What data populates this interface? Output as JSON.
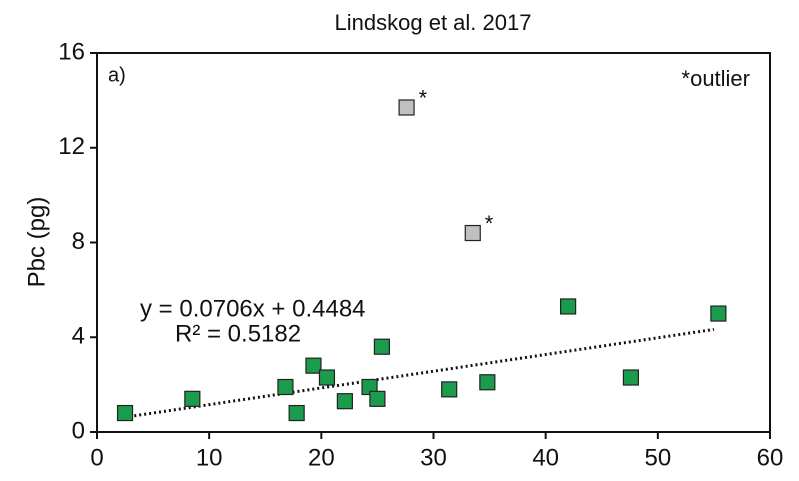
{
  "chart_data": {
    "type": "scatter",
    "title": "Lindskog et al. 2017",
    "y_label": "Pbc (pg)",
    "xlim": [
      0,
      60
    ],
    "ylim": [
      0,
      16
    ],
    "xticks": [
      0,
      10,
      20,
      30,
      40,
      50,
      60
    ],
    "yticks": [
      0,
      4,
      8,
      12,
      16
    ],
    "series": [
      {
        "color": "#1a9c4c",
        "x": [
          2.5,
          8.5,
          16.8,
          17.8,
          19.3,
          20.5,
          22.1,
          24.3,
          25.0,
          25.4,
          31.4,
          34.8,
          42.0,
          47.6,
          55.4
        ],
        "values": [
          0.8,
          1.4,
          1.9,
          0.8,
          2.8,
          2.3,
          1.3,
          1.9,
          1.4,
          3.6,
          1.8,
          2.1,
          5.3,
          2.3,
          5.0
        ]
      },
      {
        "color": "#c0c0c0",
        "x": [
          27.6,
          33.5
        ],
        "values": [
          13.7,
          8.4
        ],
        "point_labels": [
          "*",
          "*"
        ]
      }
    ],
    "trendline": {
      "x": [
        2,
        55
      ],
      "values": [
        0.59,
        4.33
      ],
      "equation": "y = 0.0706x + 0.4484",
      "r2": "R² = 0.5182"
    },
    "annotations": [
      "a)",
      "*outlier"
    ]
  }
}
